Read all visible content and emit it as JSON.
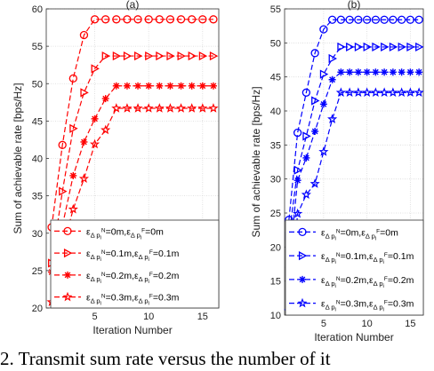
{
  "caption": "2. Transmit sum rate versus the number of it",
  "chart_data": [
    {
      "type": "line",
      "title": "(a)",
      "xlabel": "Iteration Number",
      "ylabel": "Sum of achievable rate [bps/Hz]",
      "xlim": [
        0.5,
        16.5
      ],
      "ylim": [
        20,
        60
      ],
      "xticks": [
        5,
        10,
        15
      ],
      "yticks": [
        20,
        25,
        30,
        35,
        40,
        45,
        50,
        55,
        60
      ],
      "grid": true,
      "color": "#ff0000",
      "legend_position": "bottom",
      "x": [
        1,
        2,
        3,
        4,
        5,
        6,
        7,
        8,
        9,
        10,
        11,
        12,
        13,
        14,
        15,
        16
      ],
      "series": [
        {
          "name": "ε_{Δp_i^N}=0m,ε_{Δp_i^F}=0m",
          "marker": "circle",
          "values": [
            30.8,
            41.8,
            50.7,
            56.5,
            58.6,
            58.6,
            58.6,
            58.6,
            58.6,
            58.6,
            58.6,
            58.6,
            58.6,
            58.6,
            58.6,
            58.6
          ]
        },
        {
          "name": "ε_{Δp_i^N}=0.1m,ε_{Δp_i^F}=0.1m",
          "marker": "triangle-right",
          "values": [
            26.0,
            35.6,
            44.0,
            48.8,
            52.0,
            53.7,
            53.7,
            53.7,
            53.7,
            53.7,
            53.7,
            53.7,
            53.7,
            53.7,
            53.7,
            53.7
          ]
        },
        {
          "name": "ε_{Δp_i^N}=0.2m,ε_{Δp_i^F}=0.2m",
          "marker": "asterisk",
          "values": [
            24.8,
            31.0,
            37.7,
            42.2,
            45.3,
            48.0,
            49.7,
            49.7,
            49.7,
            49.7,
            49.7,
            49.7,
            49.7,
            49.7,
            49.7,
            49.7
          ]
        },
        {
          "name": "ε_{Δp_i^N}=0.3m,ε_{Δp_i^F}=0.3m",
          "marker": "star",
          "values": [
            20.8,
            27.9,
            33.2,
            37.3,
            41.9,
            43.8,
            46.7,
            46.7,
            46.7,
            46.7,
            46.7,
            46.7,
            46.7,
            46.7,
            46.7,
            46.7
          ]
        }
      ]
    },
    {
      "type": "line",
      "title": "(b)",
      "xlabel": "Iteration Number",
      "ylabel": "Sum of achievable rate [bps/Hz]",
      "xlim": [
        0.5,
        16.5
      ],
      "ylim": [
        10,
        55
      ],
      "xticks": [
        5,
        10,
        15
      ],
      "yticks": [
        10,
        15,
        20,
        25,
        30,
        35,
        40,
        45,
        50,
        55
      ],
      "grid": true,
      "color": "#0000ff",
      "legend_position": "bottom",
      "x": [
        1,
        2,
        3,
        4,
        5,
        6,
        7,
        8,
        9,
        10,
        11,
        12,
        13,
        14,
        15,
        16
      ],
      "series": [
        {
          "name": "ε_{Δp_i^N}=0m,ε_{Δp_i^F}=0m",
          "marker": "circle",
          "values": [
            24.0,
            36.8,
            42.7,
            48.5,
            52.0,
            53.4,
            53.4,
            53.4,
            53.4,
            53.4,
            53.4,
            53.4,
            53.4,
            53.4,
            53.4,
            53.4
          ]
        },
        {
          "name": "ε_{Δp_i^N}=0.1m,ε_{Δp_i^F}=0.1m",
          "marker": "triangle-right",
          "values": [
            21.6,
            31.3,
            36.3,
            41.5,
            45.4,
            47.7,
            49.4,
            49.4,
            49.4,
            49.4,
            49.4,
            49.4,
            49.4,
            49.4,
            49.4,
            49.4
          ]
        },
        {
          "name": "ε_{Δp_i^N}=0.2m,ε_{Δp_i^F}=0.2m",
          "marker": "asterisk",
          "values": [
            17.0,
            29.8,
            33.1,
            37.0,
            41.0,
            44.6,
            45.7,
            45.7,
            45.7,
            45.7,
            45.7,
            45.7,
            45.7,
            45.7,
            45.7,
            45.7
          ]
        },
        {
          "name": "ε_{Δp_i^N}=0.3m,ε_{Δp_i^F}=0.3m",
          "marker": "star",
          "values": [
            10.6,
            24.9,
            27.7,
            29.3,
            34.0,
            38.8,
            42.7,
            42.7,
            42.7,
            42.7,
            42.7,
            42.7,
            42.7,
            42.7,
            42.7,
            42.7
          ]
        }
      ]
    }
  ]
}
